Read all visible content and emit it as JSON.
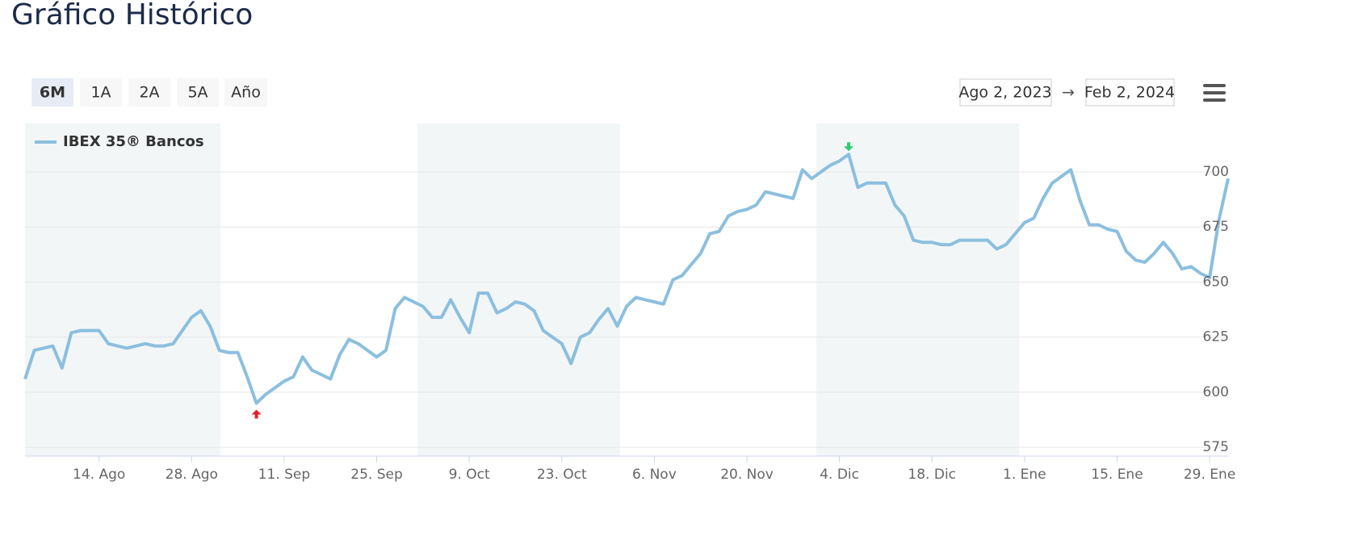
{
  "header": {
    "title": "Gráfico Histórico"
  },
  "range_buttons": [
    "6M",
    "1A",
    "2A",
    "5A",
    "Año"
  ],
  "date_range": {
    "from": "Ago 2, 2023",
    "separator": "→",
    "to": "Feb 2, 2024"
  },
  "chart_data": {
    "type": "line",
    "categories": [
      null,
      null,
      null,
      null,
      null,
      null,
      null,
      null,
      "14. Ago",
      null,
      null,
      null,
      null,
      null,
      null,
      null,
      null,
      null,
      "28. Ago",
      null,
      null,
      null,
      null,
      null,
      null,
      null,
      null,
      null,
      "11. Sep",
      null,
      null,
      null,
      null,
      null,
      null,
      null,
      null,
      null,
      "25. Sep",
      null,
      null,
      null,
      null,
      null,
      null,
      null,
      null,
      null,
      "9. Oct",
      null,
      null,
      null,
      null,
      null,
      null,
      null,
      null,
      null,
      "23. Oct",
      null,
      null,
      null,
      null,
      null,
      null,
      null,
      null,
      null,
      "6. Nov",
      null,
      null,
      null,
      null,
      null,
      null,
      null,
      null,
      null,
      "20. Nov",
      null,
      null,
      null,
      null,
      null,
      null,
      null,
      null,
      null,
      "4. Dic",
      null,
      null,
      null,
      null,
      null,
      null,
      null,
      null,
      null,
      "18. Dic",
      null,
      null,
      null,
      null,
      null,
      null,
      null,
      null,
      null,
      "1. Ene",
      null,
      null,
      null,
      null,
      null,
      null,
      null,
      null,
      null,
      "15. Ene",
      null,
      null,
      null,
      null,
      null,
      null,
      null,
      null,
      null,
      "29. Ene",
      null,
      null
    ],
    "series": [
      {
        "name": "IBEX 35® Bancos",
        "color": "#8bbfdf",
        "values": [
          606,
          619,
          620,
          621,
          611,
          627,
          628,
          628,
          628,
          622,
          621,
          620,
          621,
          622,
          621,
          621,
          622,
          628,
          634,
          637,
          630,
          619,
          618,
          618,
          607,
          595,
          599,
          602,
          605,
          607,
          616,
          610,
          608,
          606,
          617,
          624,
          622,
          619,
          616,
          619,
          638,
          643,
          641,
          639,
          634,
          634,
          642,
          634,
          627,
          645,
          645,
          636,
          638,
          641,
          640,
          637,
          628,
          625,
          622,
          613,
          625,
          627,
          633,
          638,
          630,
          639,
          643,
          642,
          641,
          640,
          651,
          653,
          658,
          663,
          672,
          673,
          680,
          682,
          683,
          685,
          691,
          690,
          689,
          688,
          701,
          697,
          700,
          703,
          705,
          708,
          693,
          695,
          695,
          695,
          685,
          680,
          669,
          668,
          668,
          667,
          667,
          669,
          669,
          669,
          669,
          665,
          667,
          672,
          677,
          679,
          688,
          695,
          698,
          701,
          687,
          676,
          676,
          674,
          673,
          664,
          660,
          659,
          663,
          668,
          663,
          656,
          657,
          654,
          652,
          678,
          697
        ]
      }
    ],
    "ylim": [
      571,
      722
    ],
    "yticks": [
      575,
      600,
      625,
      650,
      675,
      700
    ],
    "grid": true,
    "legend": "top-left"
  }
}
